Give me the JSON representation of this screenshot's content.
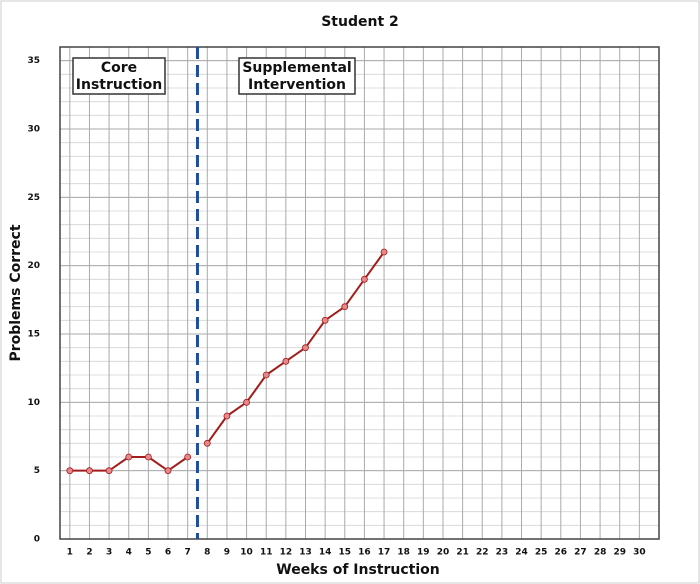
{
  "chart_data": {
    "type": "line",
    "title": "Student 2",
    "x_label": "Weeks of Instruction",
    "y_label": "Problems Correct",
    "series": [
      {
        "color": "#a31c1c",
        "x": [
          1,
          2,
          3,
          4,
          5,
          6,
          7
        ],
        "values": [
          5,
          5,
          5,
          6,
          6,
          5,
          6
        ]
      },
      {
        "color": "#a31c1c",
        "x": [
          8,
          9,
          10,
          11,
          12,
          13,
          14,
          15,
          16,
          17
        ],
        "values": [
          7,
          9,
          10,
          12,
          13,
          14,
          16,
          17,
          19,
          21
        ]
      }
    ],
    "marker_color": "#e8878a",
    "xlim": [
      0.5,
      31
    ],
    "xticks": [
      1,
      2,
      3,
      4,
      5,
      6,
      7,
      8,
      9,
      10,
      11,
      12,
      13,
      14,
      15,
      16,
      17,
      18,
      19,
      20,
      21,
      22,
      23,
      24,
      25,
      26,
      27,
      28,
      29,
      30
    ],
    "ylim": [
      0,
      36
    ],
    "yticks": [
      0,
      5,
      10,
      15,
      20,
      25,
      30,
      35
    ],
    "minor_grid_step": 1,
    "grid": true,
    "phase_change": 7.5,
    "phase_line_color": "#1f4e9c",
    "phase_labels": [
      [
        "Core",
        "Instruction"
      ],
      [
        "Supplemental",
        "Intervention"
      ]
    ]
  }
}
